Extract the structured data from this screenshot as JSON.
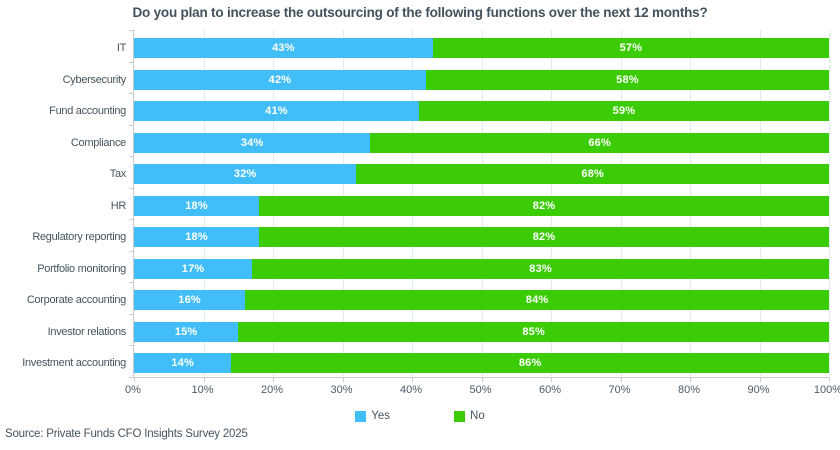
{
  "title": "Do you plan to increase the outsourcing of the following functions over the next 12 months?",
  "source": "Source: Private Funds CFO Insights Survey 2025",
  "colors": {
    "yes": "#41bef7",
    "no": "#3ccc05",
    "text": "#44545e",
    "axis": "#c5cbd0",
    "gridline": "#e2eaf0",
    "bar_label": "#ffffff"
  },
  "chart_data": {
    "type": "bar",
    "orientation": "horizontal",
    "stacked": true,
    "title": "Do you plan to increase the outsourcing of the following functions over the next 12 months?",
    "categories": [
      "IT",
      "Cybersecurity",
      "Fund accounting",
      "Compliance",
      "Tax",
      "HR",
      "Regulatory reporting",
      "Portfolio monitoring",
      "Corporate accounting",
      "Investor relations",
      "Investment accounting"
    ],
    "series": [
      {
        "name": "Yes",
        "color": "#41bef7",
        "values": [
          43,
          42,
          41,
          34,
          32,
          18,
          18,
          17,
          16,
          15,
          14
        ]
      },
      {
        "name": "No",
        "color": "#3ccc05",
        "values": [
          57,
          58,
          59,
          66,
          68,
          82,
          82,
          83,
          84,
          85,
          86
        ]
      }
    ],
    "value_suffix": "%",
    "xlim": [
      0,
      100
    ],
    "x_ticks": [
      "0%",
      "10%",
      "20%",
      "30%",
      "40%",
      "50%",
      "60%",
      "70%",
      "80%",
      "90%",
      "100%"
    ],
    "grid": "vertical-light",
    "legend_position": "bottom-center",
    "data_labels": "inside-center-white"
  }
}
